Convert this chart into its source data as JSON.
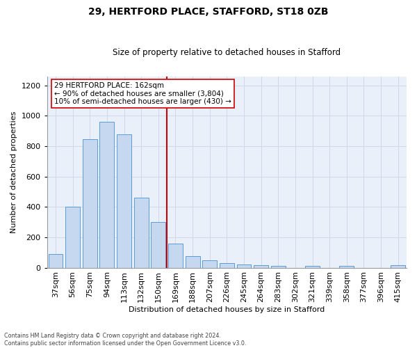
{
  "title": "29, HERTFORD PLACE, STAFFORD, ST18 0ZB",
  "subtitle": "Size of property relative to detached houses in Stafford",
  "xlabel": "Distribution of detached houses by size in Stafford",
  "ylabel": "Number of detached properties",
  "bar_labels": [
    "37sqm",
    "56sqm",
    "75sqm",
    "94sqm",
    "113sqm",
    "132sqm",
    "150sqm",
    "169sqm",
    "188sqm",
    "207sqm",
    "226sqm",
    "245sqm",
    "264sqm",
    "283sqm",
    "302sqm",
    "321sqm",
    "339sqm",
    "358sqm",
    "377sqm",
    "396sqm",
    "415sqm"
  ],
  "bar_values": [
    88,
    400,
    845,
    960,
    880,
    460,
    300,
    160,
    75,
    50,
    30,
    22,
    15,
    10,
    0,
    10,
    0,
    10,
    0,
    0,
    15
  ],
  "bar_color": "#c5d8f0",
  "bar_edge_color": "#5b9bd5",
  "grid_color": "#d0d8e8",
  "bg_color": "#eaf0fa",
  "vline_color": "#cc0000",
  "annotation_text": "29 HERTFORD PLACE: 162sqm\n← 90% of detached houses are smaller (3,804)\n10% of semi-detached houses are larger (430) →",
  "annotation_box_color": "#ffffff",
  "annotation_box_edge": "#cc0000",
  "footer_text": "Contains HM Land Registry data © Crown copyright and database right 2024.\nContains public sector information licensed under the Open Government Licence v3.0.",
  "ylim": [
    0,
    1260
  ],
  "yticks": [
    0,
    200,
    400,
    600,
    800,
    1000,
    1200
  ]
}
